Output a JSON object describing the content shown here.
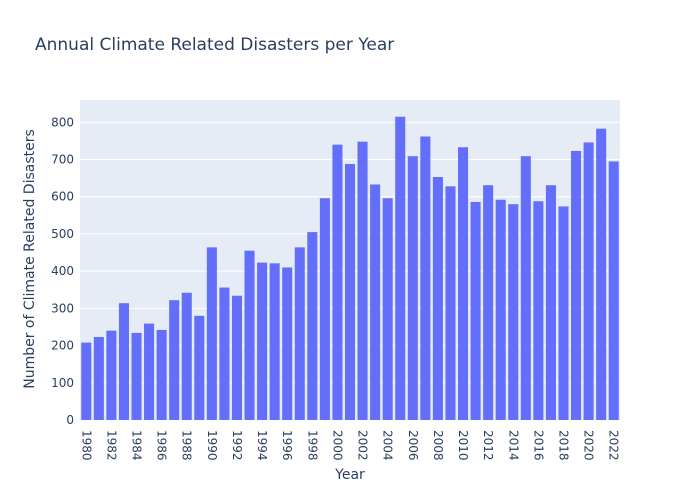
{
  "chart_data": {
    "type": "bar",
    "title": "Annual Climate Related Disasters per Year",
    "xlabel": "Year",
    "ylabel": "Number of Climate Related Disasters",
    "x": [
      1980,
      1981,
      1982,
      1983,
      1984,
      1985,
      1986,
      1987,
      1988,
      1989,
      1990,
      1991,
      1992,
      1993,
      1994,
      1995,
      1996,
      1997,
      1998,
      1999,
      2000,
      2001,
      2002,
      2003,
      2004,
      2005,
      2006,
      2007,
      2008,
      2009,
      2010,
      2011,
      2012,
      2013,
      2014,
      2015,
      2016,
      2017,
      2018,
      2019,
      2020,
      2021,
      2022
    ],
    "values": [
      208,
      223,
      240,
      314,
      234,
      259,
      242,
      322,
      342,
      280,
      464,
      356,
      334,
      455,
      423,
      421,
      410,
      464,
      505,
      596,
      740,
      688,
      748,
      633,
      596,
      815,
      709,
      762,
      653,
      628,
      733,
      586,
      631,
      592,
      580,
      709,
      588,
      631,
      574,
      723,
      746,
      783,
      695
    ],
    "x_tick_labels": [
      "1980",
      "1982",
      "1984",
      "1986",
      "1988",
      "1990",
      "1992",
      "1994",
      "1996",
      "1998",
      "2000",
      "2002",
      "2004",
      "2006",
      "2008",
      "2010",
      "2012",
      "2014",
      "2016",
      "2018",
      "2020",
      "2022"
    ],
    "y_ticks": [
      0,
      100,
      200,
      300,
      400,
      500,
      600,
      700,
      800
    ],
    "ylim": [
      0,
      860
    ],
    "grid": true,
    "legend": "none",
    "colors": {
      "bar": "#636efa",
      "plot_background": "#e5ecf6",
      "text": "#2a3f5f",
      "grid": "#ffffff"
    }
  }
}
